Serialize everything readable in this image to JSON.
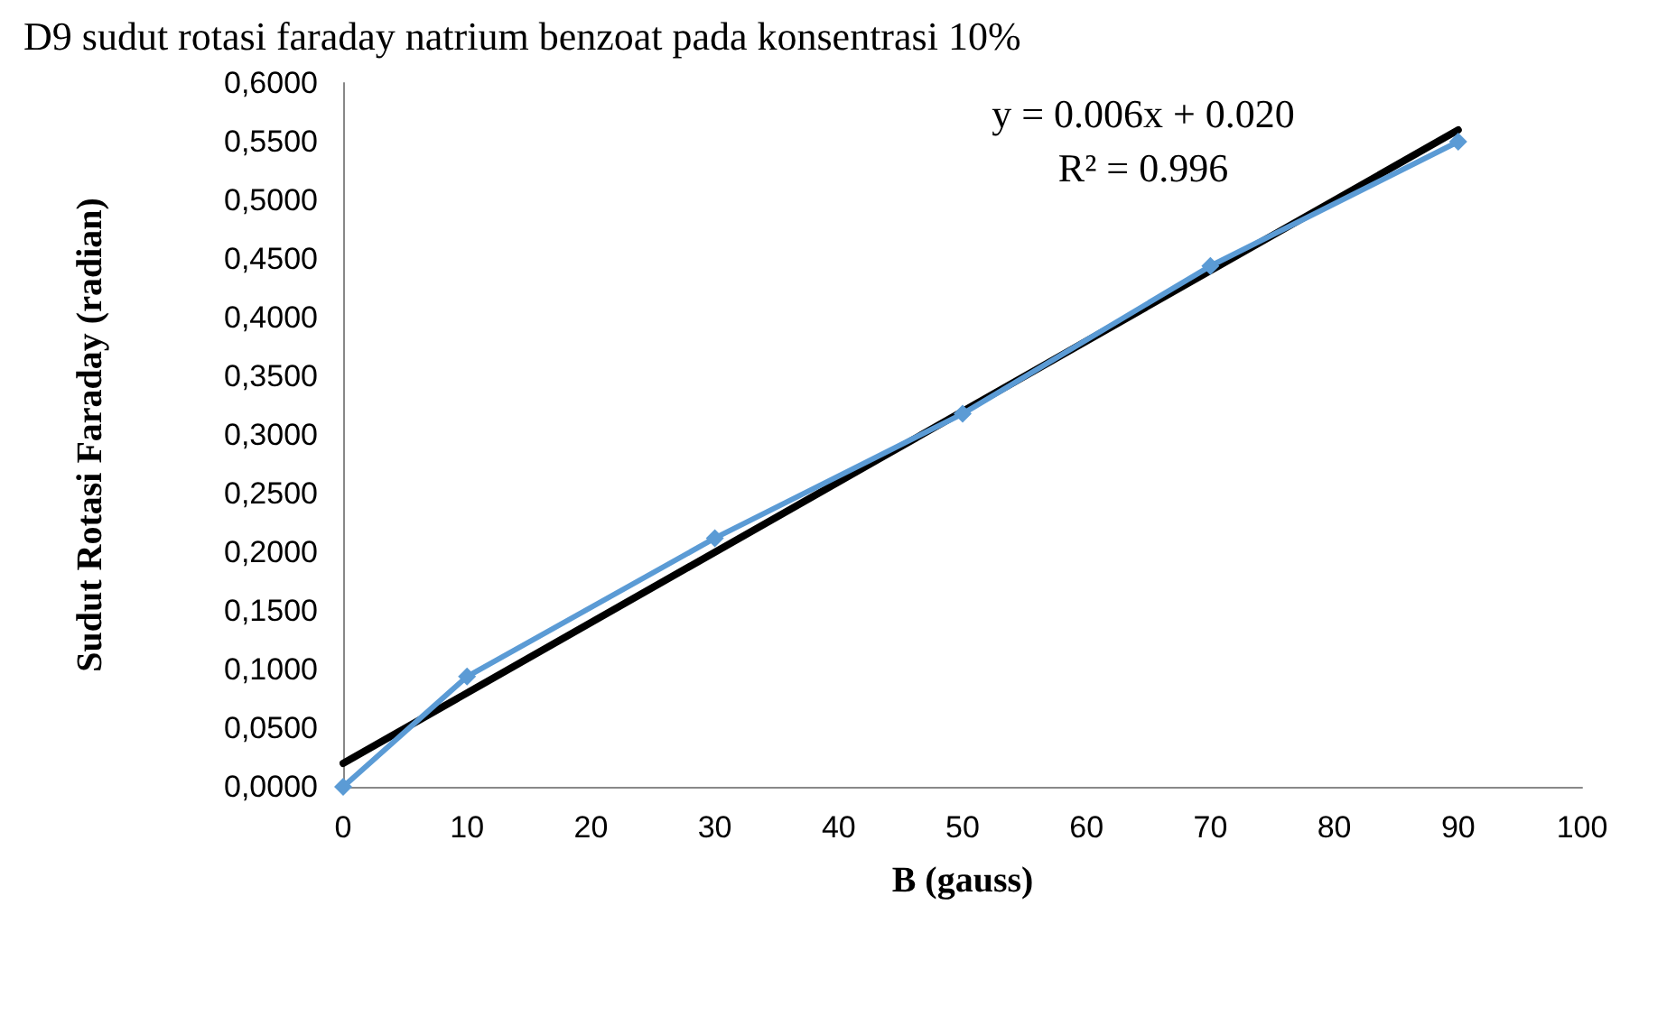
{
  "chart_data": {
    "type": "line",
    "title": "D9 sudut rotasi faraday natrium benzoat pada konsentrasi 10%",
    "xlabel": "B (gauss)",
    "ylabel": "Sudut Rotasi Faraday (radian)",
    "x": [
      0,
      10,
      30,
      50,
      70,
      90
    ],
    "series": [
      {
        "color": "#5b9bd5",
        "marker": "diamond",
        "values": [
          0,
          0.094,
          0.212,
          0.318,
          0.444,
          0.55
        ]
      },
      {
        "type": "line",
        "color": "#000000",
        "marker": "none",
        "x": [
          0,
          90
        ],
        "values": [
          0.02,
          0.56
        ]
      }
    ],
    "xlim": [
      0,
      100
    ],
    "xticks": [
      0,
      10,
      20,
      30,
      40,
      50,
      60,
      70,
      80,
      90,
      100
    ],
    "ylim": [
      0,
      0.6
    ],
    "yticks": [
      {
        "value": 0,
        "label": "0,0000"
      },
      {
        "value": 0.05,
        "label": "0,0500"
      },
      {
        "value": 0.1,
        "label": "0,1000"
      },
      {
        "value": 0.15,
        "label": "0,1500"
      },
      {
        "value": 0.2,
        "label": "0,2000"
      },
      {
        "value": 0.25,
        "label": "0,2500"
      },
      {
        "value": 0.3,
        "label": "0,3000"
      },
      {
        "value": 0.35,
        "label": "0,3500"
      },
      {
        "value": 0.4,
        "label": "0,4000"
      },
      {
        "value": 0.45,
        "label": "0,4500"
      },
      {
        "value": 0.5,
        "label": "0,5000"
      },
      {
        "value": 0.55,
        "label": "0,5500"
      },
      {
        "value": 0.6,
        "label": "0,6000"
      }
    ],
    "annotations": [
      "y = 0.006x + 0.020\nR² = 0.996"
    ],
    "grid": false
  }
}
